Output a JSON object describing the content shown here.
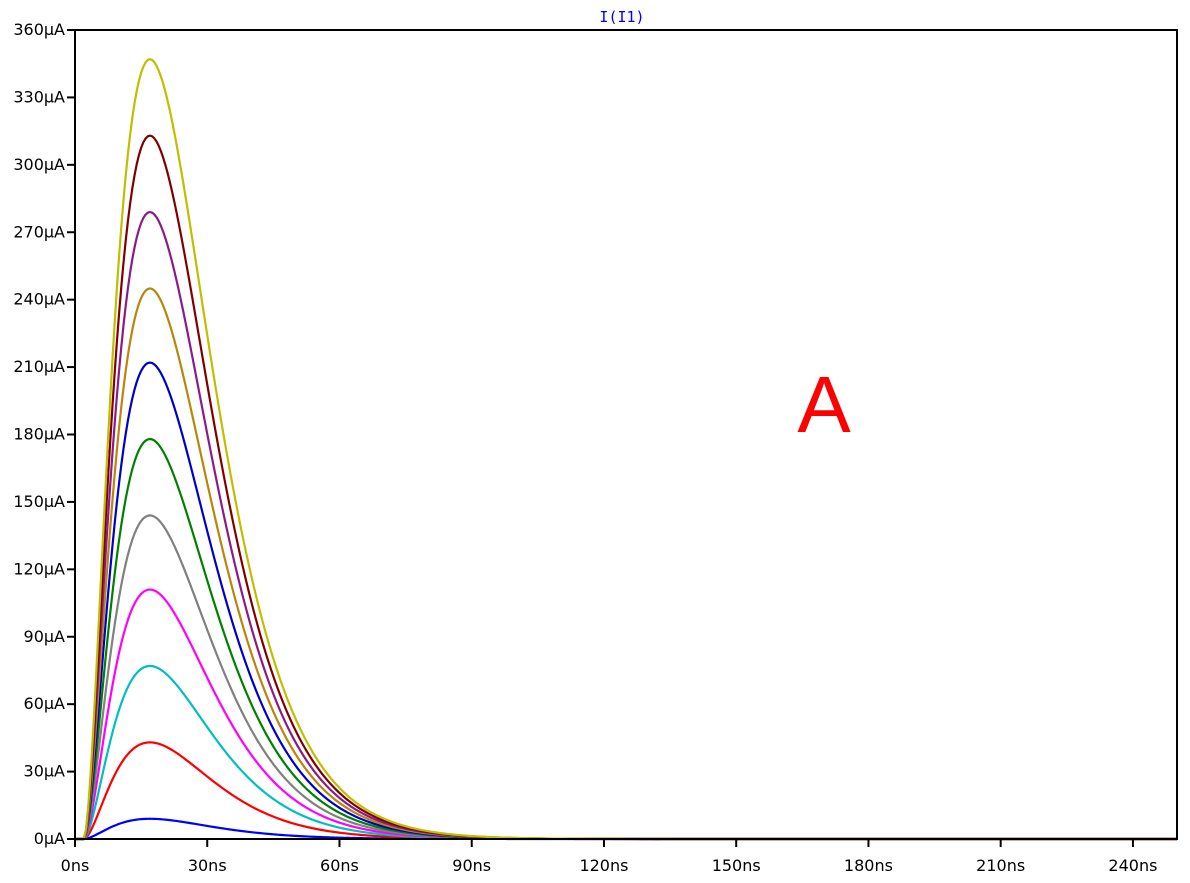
{
  "chart_data": {
    "type": "line",
    "title": "I(I1)",
    "annotation": "A",
    "xlim": [
      0,
      250
    ],
    "ylim": [
      0,
      360
    ],
    "x_unit": "ns",
    "y_unit": "µA",
    "xticks": [
      0,
      30,
      60,
      90,
      120,
      150,
      180,
      210,
      240
    ],
    "xtick_labels": [
      "0ns",
      "30ns",
      "60ns",
      "90ns",
      "120ns",
      "150ns",
      "180ns",
      "210ns",
      "240ns"
    ],
    "yticks": [
      0,
      30,
      60,
      90,
      120,
      150,
      180,
      210,
      240,
      270,
      300,
      330,
      360
    ],
    "ytick_labels": [
      "0µA",
      "30µA",
      "60µA",
      "90µA",
      "120µA",
      "150µA",
      "180µA",
      "210µA",
      "240µA",
      "270µA",
      "300µA",
      "330µA",
      "360µA"
    ],
    "grid": false,
    "legend": "none",
    "waveform": {
      "onset_ns": 2,
      "peak_time_ns": 17
    },
    "series": [
      {
        "peak": 9,
        "color": "#0000ff"
      },
      {
        "peak": 43,
        "color": "#ff0000"
      },
      {
        "peak": 77,
        "color": "#00bfbf"
      },
      {
        "peak": 111,
        "color": "#ff00ff"
      },
      {
        "peak": 144,
        "color": "#808080"
      },
      {
        "peak": 178,
        "color": "#008000"
      },
      {
        "peak": 212,
        "color": "#0000cc"
      },
      {
        "peak": 245,
        "color": "#b8860b"
      },
      {
        "peak": 279,
        "color": "#8b1a8b"
      },
      {
        "peak": 313,
        "color": "#800000"
      },
      {
        "peak": 347,
        "color": "#bfbf00"
      }
    ],
    "colors": {
      "title": "#0000ff",
      "annotation": "#ff0000",
      "axis": "#000000"
    }
  }
}
